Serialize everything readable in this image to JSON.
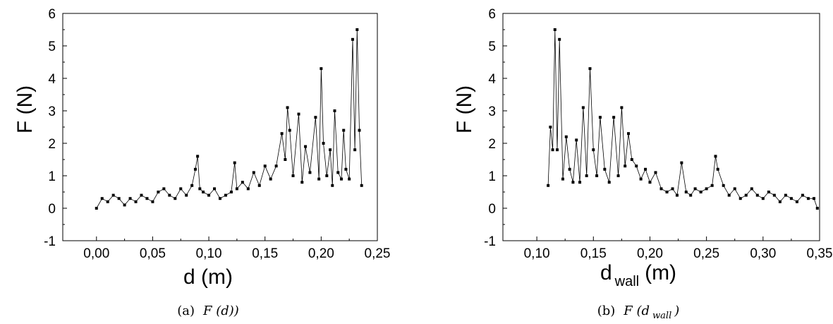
{
  "chart_data": [
    {
      "type": "line",
      "xlabel": "d (m)",
      "ylabel": "F (N)",
      "caption": {
        "prefix": "(a)",
        "text": "F (d))"
      },
      "xlim": [
        -0.03,
        0.25
      ],
      "ylim": [
        -1,
        6
      ],
      "xticks": [
        0.0,
        0.05,
        0.1,
        0.15,
        0.2,
        0.25
      ],
      "xtick_labels": [
        "0,00",
        "0,05",
        "0,10",
        "0,15",
        "0,20",
        "0,25"
      ],
      "yticks": [
        -1,
        0,
        1,
        2,
        3,
        4,
        5,
        6
      ],
      "ytick_labels": [
        "-1",
        "0",
        "1",
        "2",
        "3",
        "4",
        "5",
        "6"
      ],
      "series": [
        {
          "marker": "square",
          "color": "#000000",
          "x": [
            0.0,
            0.005,
            0.01,
            0.015,
            0.02,
            0.025,
            0.03,
            0.035,
            0.04,
            0.045,
            0.05,
            0.055,
            0.06,
            0.065,
            0.07,
            0.075,
            0.08,
            0.085,
            0.088,
            0.09,
            0.092,
            0.095,
            0.1,
            0.105,
            0.11,
            0.115,
            0.12,
            0.123,
            0.125,
            0.13,
            0.135,
            0.14,
            0.145,
            0.15,
            0.155,
            0.16,
            0.165,
            0.168,
            0.17,
            0.172,
            0.175,
            0.18,
            0.183,
            0.186,
            0.19,
            0.195,
            0.198,
            0.2,
            0.202,
            0.205,
            0.208,
            0.21,
            0.212,
            0.215,
            0.218,
            0.22,
            0.222,
            0.225,
            0.228,
            0.23,
            0.232,
            0.234,
            0.236
          ],
          "y": [
            0.0,
            0.3,
            0.2,
            0.4,
            0.3,
            0.1,
            0.3,
            0.2,
            0.4,
            0.3,
            0.2,
            0.5,
            0.6,
            0.4,
            0.3,
            0.6,
            0.4,
            0.7,
            1.2,
            1.6,
            0.6,
            0.5,
            0.4,
            0.6,
            0.3,
            0.4,
            0.5,
            1.4,
            0.6,
            0.8,
            0.6,
            1.1,
            0.7,
            1.3,
            0.9,
            1.3,
            2.3,
            1.5,
            3.1,
            2.4,
            1.0,
            2.9,
            0.8,
            1.9,
            1.1,
            2.8,
            0.9,
            4.3,
            2.0,
            1.0,
            1.8,
            0.7,
            3.0,
            1.1,
            0.9,
            2.4,
            1.2,
            0.9,
            5.2,
            1.8,
            5.5,
            2.4,
            0.7
          ]
        }
      ]
    },
    {
      "type": "line",
      "xlabel": "d",
      "xlabel_sub": "wall",
      "xlabel_unit": "(m)",
      "ylabel": "F (N)",
      "caption": {
        "prefix": "(b)",
        "text": "F (d",
        "sub": "wall",
        "suffix": ")"
      },
      "xlim": [
        0.07,
        0.35
      ],
      "ylim": [
        -1,
        6
      ],
      "xticks": [
        0.1,
        0.15,
        0.2,
        0.25,
        0.3,
        0.35
      ],
      "xtick_labels": [
        "0,10",
        "0,15",
        "0,20",
        "0,25",
        "0,30",
        "0,35"
      ],
      "yticks": [
        -1,
        0,
        1,
        2,
        3,
        4,
        5,
        6
      ],
      "ytick_labels": [
        "-1",
        "0",
        "1",
        "2",
        "3",
        "4",
        "5",
        "6"
      ],
      "series": [
        {
          "marker": "square",
          "color": "#000000",
          "x": [
            0.11,
            0.112,
            0.114,
            0.116,
            0.118,
            0.12,
            0.123,
            0.126,
            0.129,
            0.132,
            0.135,
            0.138,
            0.141,
            0.144,
            0.147,
            0.15,
            0.153,
            0.156,
            0.16,
            0.164,
            0.168,
            0.172,
            0.175,
            0.178,
            0.181,
            0.184,
            0.188,
            0.192,
            0.196,
            0.2,
            0.205,
            0.21,
            0.215,
            0.22,
            0.224,
            0.228,
            0.232,
            0.236,
            0.24,
            0.245,
            0.25,
            0.255,
            0.258,
            0.26,
            0.265,
            0.27,
            0.275,
            0.28,
            0.285,
            0.29,
            0.295,
            0.3,
            0.305,
            0.31,
            0.315,
            0.32,
            0.325,
            0.33,
            0.335,
            0.34,
            0.345,
            0.348
          ],
          "y": [
            0.7,
            2.5,
            1.8,
            5.5,
            1.8,
            5.2,
            0.9,
            2.2,
            1.2,
            0.8,
            2.1,
            0.8,
            3.1,
            1.0,
            4.3,
            1.8,
            1.0,
            2.8,
            1.2,
            0.8,
            2.8,
            1.0,
            3.1,
            1.3,
            2.3,
            1.5,
            1.3,
            0.9,
            1.2,
            0.8,
            1.1,
            0.6,
            0.5,
            0.6,
            0.4,
            1.4,
            0.5,
            0.4,
            0.6,
            0.5,
            0.6,
            0.7,
            1.6,
            1.2,
            0.7,
            0.4,
            0.6,
            0.3,
            0.4,
            0.6,
            0.4,
            0.3,
            0.5,
            0.4,
            0.2,
            0.4,
            0.3,
            0.2,
            0.4,
            0.3,
            0.3,
            0.0
          ]
        }
      ]
    }
  ]
}
